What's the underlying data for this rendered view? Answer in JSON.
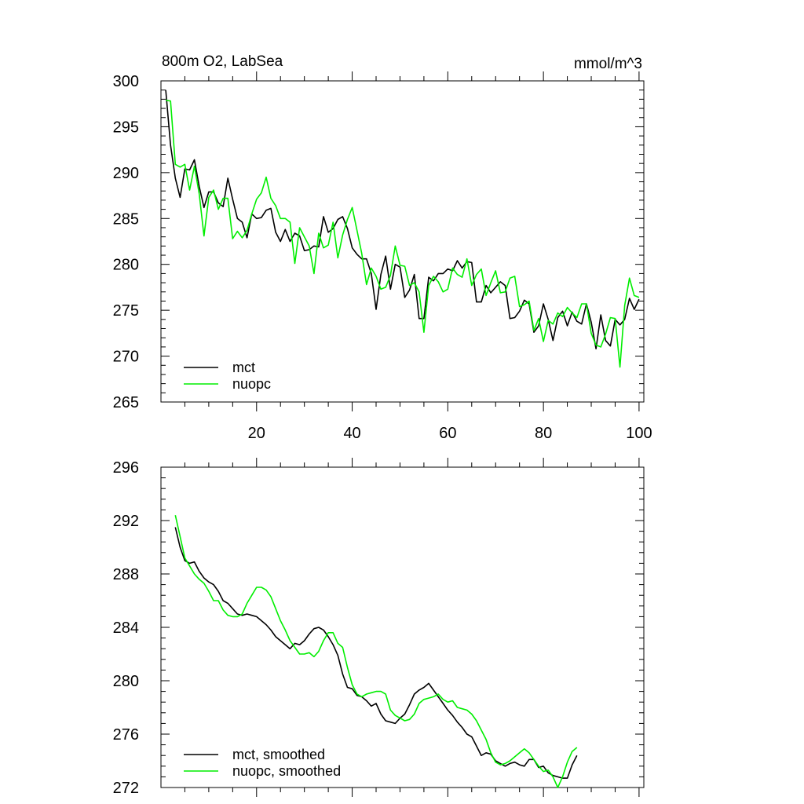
{
  "chart_data": [
    {
      "type": "line",
      "title": "800m O2, LabSea",
      "units": "mmol/m^3",
      "xlim": [
        0,
        101
      ],
      "ylim": [
        265,
        300
      ],
      "xticks": [
        20,
        40,
        60,
        80,
        100
      ],
      "yticks": [
        265,
        270,
        275,
        280,
        285,
        290,
        295,
        300
      ],
      "show_xtick_labels": true,
      "legend_position": "bottom-left",
      "series": [
        {
          "name": "mct",
          "color": "#000000",
          "x_start": 1,
          "values": [
            299.0,
            293.0,
            289.4,
            287.3,
            290.4,
            290.3,
            291.4,
            288.5,
            286.2,
            287.9,
            287.9,
            286.7,
            286.3,
            289.4,
            287.1,
            285.0,
            284.6,
            282.9,
            285.5,
            285.0,
            285.1,
            285.9,
            286.1,
            283.5,
            282.5,
            283.8,
            282.5,
            283.4,
            283.1,
            281.5,
            281.6,
            282.0,
            281.9,
            285.2,
            283.5,
            283.9,
            284.9,
            285.2,
            283.9,
            281.8,
            281.1,
            280.6,
            280.6,
            279.0,
            275.1,
            278.9,
            280.9,
            277.3,
            280.0,
            279.7,
            276.4,
            277.2,
            278.9,
            274.1,
            274.1,
            278.6,
            278.2,
            279.0,
            279.0,
            279.5,
            279.3,
            280.4,
            279.6,
            280.3,
            280.2,
            275.9,
            275.9,
            277.7,
            276.9,
            277.5,
            278.1,
            277.7,
            274.1,
            274.2,
            274.9,
            276.1,
            275.7,
            272.6,
            273.3,
            275.7,
            274.0,
            271.7,
            274.2,
            274.9,
            273.3,
            274.8,
            273.8,
            273.5,
            275.7,
            273.7,
            270.8,
            274.5,
            271.7,
            271.1,
            274.0,
            273.4,
            274.0,
            276.3,
            275.1,
            276.2
          ]
        },
        {
          "name": "nuopc",
          "color": "#00ee00",
          "x_start": 1,
          "values": [
            297.9,
            297.8,
            290.9,
            290.6,
            290.9,
            288.1,
            290.7,
            287.7,
            283.1,
            287.3,
            288.1,
            286.0,
            287.2,
            287.2,
            282.8,
            283.6,
            282.9,
            283.7,
            285.5,
            287.1,
            287.8,
            289.5,
            287.2,
            286.4,
            285.0,
            285.0,
            284.6,
            280.1,
            284.0,
            283.0,
            282.0,
            279.0,
            283.4,
            281.8,
            282.1,
            284.6,
            280.7,
            283.2,
            284.9,
            286.2,
            283.7,
            281.2,
            277.8,
            279.6,
            278.7,
            277.3,
            277.5,
            278.8,
            282.0,
            279.9,
            279.8,
            277.7,
            278.0,
            277.0,
            272.6,
            277.7,
            278.7,
            278.1,
            277.0,
            277.3,
            279.6,
            278.9,
            278.6,
            280.6,
            277.7,
            278.9,
            279.5,
            276.6,
            278.0,
            279.3,
            276.9,
            277.0,
            278.5,
            278.7,
            275.4,
            275.6,
            276.0,
            272.8,
            274.1,
            271.6,
            273.9,
            273.5,
            274.7,
            274.3,
            275.3,
            274.7,
            274.2,
            275.7,
            275.7,
            272.5,
            271.2,
            271.0,
            272.4,
            274.2,
            274.1,
            268.8,
            275.5,
            278.5,
            276.6,
            276.4
          ]
        }
      ]
    },
    {
      "type": "line",
      "title": "",
      "units": "",
      "xlim": [
        0,
        101
      ],
      "ylim": [
        272,
        296
      ],
      "xticks": [
        20,
        40,
        60,
        80,
        100
      ],
      "yticks": [
        272,
        276,
        280,
        284,
        288,
        292,
        296
      ],
      "show_xtick_labels": false,
      "legend_position": "bottom-left",
      "series": [
        {
          "name": "mct, smoothed",
          "color": "#000000",
          "x_start": 3,
          "values": [
            291.5,
            290.0,
            289.0,
            288.8,
            288.9,
            288.2,
            287.7,
            287.4,
            287.2,
            286.7,
            286.0,
            285.8,
            285.4,
            285.0,
            284.9,
            285.0,
            284.9,
            284.8,
            284.5,
            284.2,
            283.8,
            283.3,
            283.0,
            282.7,
            282.4,
            282.8,
            282.7,
            283.0,
            283.5,
            283.9,
            284.0,
            283.8,
            283.3,
            282.7,
            281.9,
            280.5,
            279.5,
            279.4,
            278.9,
            278.8,
            278.5,
            278.1,
            278.3,
            277.5,
            277.0,
            276.9,
            276.8,
            277.2,
            277.5,
            278.2,
            279.0,
            279.3,
            279.5,
            279.8,
            279.3,
            278.8,
            278.3,
            277.8,
            277.4,
            276.9,
            276.5,
            276.0,
            275.8,
            275.1,
            274.4,
            274.6,
            274.5,
            274.0,
            273.8,
            273.6,
            273.8,
            273.9,
            273.7,
            273.6,
            274.1,
            274.1,
            273.5,
            273.6,
            273.1,
            272.9,
            272.8,
            272.7,
            272.7,
            273.7,
            274.4
          ]
        },
        {
          "name": "nuopc, smoothed",
          "color": "#00ee00",
          "x_start": 3,
          "values": [
            292.4,
            290.8,
            289.2,
            288.6,
            288.0,
            287.6,
            287.3,
            286.7,
            286.0,
            286.0,
            285.3,
            284.9,
            284.8,
            284.8,
            285.0,
            285.8,
            286.4,
            287.0,
            287.0,
            286.8,
            286.3,
            285.4,
            284.5,
            283.8,
            283.0,
            282.5,
            282.0,
            282.0,
            282.1,
            281.8,
            282.2,
            283.0,
            283.6,
            283.6,
            282.8,
            282.5,
            281.0,
            279.7,
            279.0,
            278.8,
            279.0,
            279.1,
            279.2,
            279.2,
            279.0,
            277.8,
            277.4,
            277.2,
            277.0,
            277.1,
            277.5,
            278.3,
            278.6,
            278.7,
            278.8,
            279.0,
            278.6,
            278.4,
            278.5,
            278.0,
            277.9,
            277.8,
            277.5,
            277.0,
            276.3,
            275.6,
            274.6,
            273.9,
            273.7,
            273.8,
            274.0,
            274.3,
            274.6,
            274.9,
            274.6,
            274.1,
            273.6,
            273.2,
            273.3,
            272.8,
            272.0,
            272.8,
            273.9,
            274.7,
            275.0
          ]
        }
      ]
    }
  ]
}
